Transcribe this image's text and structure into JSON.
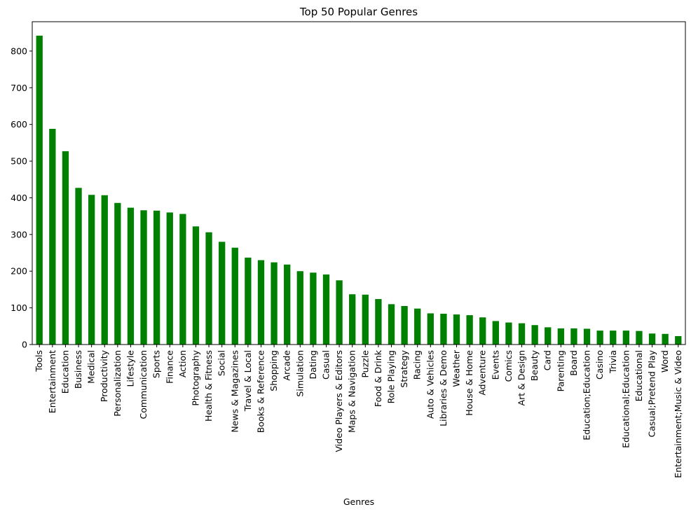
{
  "chart_data": {
    "type": "bar",
    "title": "Top 50 Popular Genres",
    "xlabel": "Genres",
    "ylabel": "",
    "ylim": [
      0,
      880
    ],
    "yticks": [
      0,
      100,
      200,
      300,
      400,
      500,
      600,
      700,
      800
    ],
    "grid": false,
    "bar_color": "#008000",
    "categories": [
      "Tools",
      "Entertainment",
      "Education",
      "Business",
      "Medical",
      "Productivity",
      "Personalization",
      "Lifestyle",
      "Communication",
      "Sports",
      "Finance",
      "Action",
      "Photography",
      "Health & Fitness",
      "Social",
      "News & Magazines",
      "Travel & Local",
      "Books & Reference",
      "Shopping",
      "Arcade",
      "Simulation",
      "Dating",
      "Casual",
      "Video Players & Editors",
      "Maps & Navigation",
      "Puzzle",
      "Food & Drink",
      "Role Playing",
      "Strategy",
      "Racing",
      "Auto & Vehicles",
      "Libraries & Demo",
      "Weather",
      "House & Home",
      "Adventure",
      "Events",
      "Comics",
      "Art & Design",
      "Beauty",
      "Card",
      "Parenting",
      "Board",
      "Education;Education",
      "Casino",
      "Trivia",
      "Educational;Education",
      "Educational",
      "Casual;Pretend Play",
      "Word",
      "Entertainment;Music & Video"
    ],
    "values": [
      842,
      588,
      527,
      427,
      408,
      407,
      386,
      373,
      366,
      365,
      360,
      356,
      322,
      306,
      280,
      264,
      237,
      230,
      224,
      218,
      200,
      196,
      191,
      175,
      137,
      136,
      124,
      110,
      105,
      98,
      85,
      84,
      82,
      80,
      74,
      64,
      60,
      58,
      53,
      47,
      44,
      44,
      43,
      38,
      38,
      38,
      37,
      30,
      29,
      23
    ]
  }
}
